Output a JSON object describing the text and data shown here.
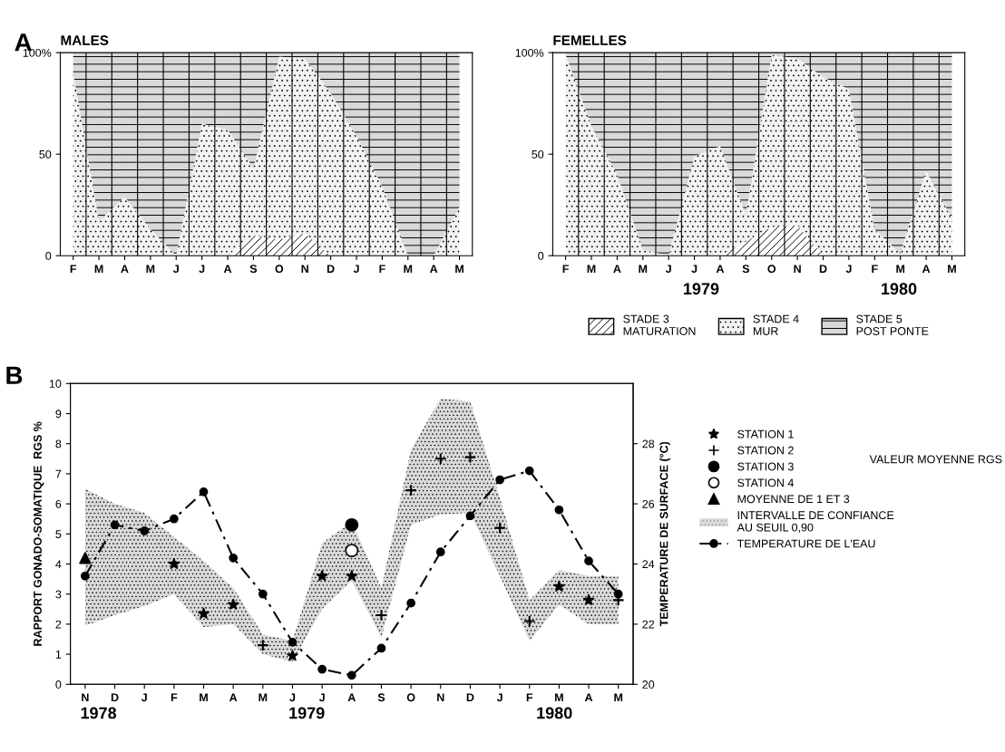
{
  "chart_data": [
    {
      "type": "area",
      "title": "MALES",
      "stacked": true,
      "grid": "x",
      "annotations": [
        "A"
      ],
      "categories": [
        "F",
        "M",
        "A",
        "M",
        "J",
        "J",
        "A",
        "S",
        "O",
        "N",
        "D",
        "J",
        "F",
        "M",
        "A",
        "M"
      ],
      "ylim": [
        0,
        100
      ],
      "yticks": [
        0,
        50,
        {
          "value": 100,
          "label": "100%"
        }
      ],
      "series": [
        {
          "color": "#ffffff",
          "values": [
            0,
            0,
            0,
            0,
            0,
            0,
            0,
            10,
            8,
            11,
            0,
            0,
            0,
            0,
            0,
            0
          ]
        },
        {
          "color": "#f2f2f2",
          "values": [
            90,
            17,
            29,
            13,
            0,
            65,
            62,
            33,
            90,
            86,
            80,
            59,
            34,
            0,
            0,
            24
          ]
        },
        {
          "color": "#d9d9d9",
          "values": [
            10,
            83,
            71,
            87,
            100,
            35,
            38,
            57,
            2,
            3,
            20,
            41,
            66,
            100,
            100,
            76
          ]
        }
      ]
    },
    {
      "type": "area",
      "title": "FEMELLES",
      "stacked": true,
      "grid": "x",
      "legend": "bottom",
      "annotations": [
        "1979",
        "1980"
      ],
      "categories": [
        "F",
        "M",
        "A",
        "M",
        "J",
        "J",
        "A",
        "S",
        "O",
        "N",
        "D",
        "J",
        "F",
        "M",
        "A",
        "M"
      ],
      "ylim": [
        0,
        100
      ],
      "yticks": [
        0,
        50,
        {
          "value": 100,
          "label": "100%"
        }
      ],
      "series": [
        {
          "name": "STADE 3\nMATURATION",
          "color": "#ffffff",
          "values": [
            0,
            0,
            0,
            0,
            0,
            0,
            0,
            7,
            14,
            15,
            0,
            0,
            0,
            0,
            0,
            0
          ]
        },
        {
          "name": "STADE 4\nMUR",
          "color": "#f2f2f2",
          "values": [
            99,
            64,
            40,
            3,
            0,
            49,
            54,
            13,
            85,
            82,
            88,
            82,
            13,
            1,
            42,
            18
          ]
        },
        {
          "name": "STADE 5\nPOST PONTE",
          "color": "#d9d9d9",
          "values": [
            1,
            36,
            60,
            97,
            100,
            51,
            46,
            80,
            1,
            3,
            12,
            18,
            87,
            99,
            58,
            82
          ]
        }
      ]
    },
    {
      "type": "line",
      "legend": "right",
      "annotations": [
        "B",
        "VALEUR MOYENNE RGS",
        "1978",
        "1979",
        "1980"
      ],
      "ylabel": "RAPPORT GONADO-SOMATIQUE  RGS %",
      "y2label": "TEMPERATURE DE SURFACE (°C)",
      "categories": [
        "N",
        "D",
        "J",
        "F",
        "M",
        "A",
        "M",
        "J",
        "J",
        "A",
        "S",
        "O",
        "N",
        "D",
        "J",
        "F",
        "M",
        "A",
        "M"
      ],
      "ylim": [
        0,
        10
      ],
      "yticks": [
        0,
        1,
        2,
        3,
        4,
        5,
        6,
        7,
        8,
        9,
        10
      ],
      "y2lim": [
        20,
        30
      ],
      "y2ticks": [
        20,
        22,
        24,
        26,
        28
      ],
      "series": [
        {
          "name": "STATION 1",
          "type": "scatter",
          "marker": "star",
          "color": "#000000",
          "values": [
            null,
            null,
            null,
            4.0,
            2.35,
            2.65,
            null,
            0.95,
            3.6,
            3.6,
            null,
            null,
            null,
            null,
            null,
            null,
            3.25,
            2.8,
            null
          ]
        },
        {
          "name": "STATION 2",
          "type": "scatter",
          "marker": "cross",
          "color": "#000000",
          "values": [
            null,
            null,
            null,
            null,
            null,
            null,
            1.3,
            null,
            null,
            null,
            2.3,
            6.45,
            7.5,
            7.55,
            5.2,
            2.1,
            null,
            null,
            2.8
          ]
        },
        {
          "name": "STATION 3",
          "type": "scatter",
          "marker": "circle",
          "color": "#000000",
          "values": [
            null,
            null,
            null,
            null,
            null,
            null,
            null,
            null,
            null,
            5.3,
            null,
            null,
            null,
            null,
            null,
            null,
            null,
            null,
            null
          ]
        },
        {
          "name": "STATION 4",
          "type": "scatter",
          "marker": "circle",
          "color": "#ffffff",
          "values": [
            null,
            null,
            null,
            null,
            null,
            null,
            null,
            null,
            null,
            4.45,
            null,
            null,
            null,
            null,
            null,
            null,
            null,
            null,
            null
          ]
        },
        {
          "name": "MOYENNE DE 1 ET 3",
          "type": "scatter",
          "marker": "triangle",
          "color": "#000000",
          "values": [
            4.2,
            null,
            null,
            null,
            null,
            null,
            null,
            null,
            null,
            null,
            null,
            null,
            null,
            null,
            null,
            null,
            null,
            null,
            null
          ]
        },
        {
          "name": "INTERVALLE DE CONFIANCE\nAU SEUIL 0,90",
          "type": "line",
          "color": "#d9d9d9",
          "values": [
            null,
            null,
            null,
            null,
            null,
            null,
            null,
            null,
            null,
            null,
            null,
            null,
            null,
            null,
            null,
            null,
            null,
            null,
            null
          ],
          "lower": [
            1.95,
            2.3,
            2.6,
            3.0,
            1.9,
            2.0,
            1.0,
            0.75,
            2.5,
            3.45,
            1.55,
            5.3,
            5.65,
            5.7,
            3.6,
            1.45,
            2.65,
            2.0,
            2.0
          ],
          "upper": [
            6.5,
            6.0,
            5.7,
            4.9,
            4.1,
            3.2,
            1.65,
            1.45,
            4.7,
            5.4,
            3.2,
            7.8,
            9.5,
            9.4,
            6.2,
            2.8,
            3.8,
            3.6,
            3.6
          ]
        },
        {
          "name": "TEMPERATURE DE L'EAU",
          "type": "line",
          "axis": "y2",
          "marker": "circle",
          "line_style": "dashed",
          "color": "#000000",
          "values": [
            23.6,
            25.3,
            25.1,
            25.5,
            26.4,
            24.2,
            23.0,
            21.4,
            20.5,
            20.3,
            21.2,
            22.7,
            24.4,
            25.6,
            26.8,
            27.1,
            25.8,
            24.1,
            23.0
          ]
        }
      ]
    }
  ]
}
